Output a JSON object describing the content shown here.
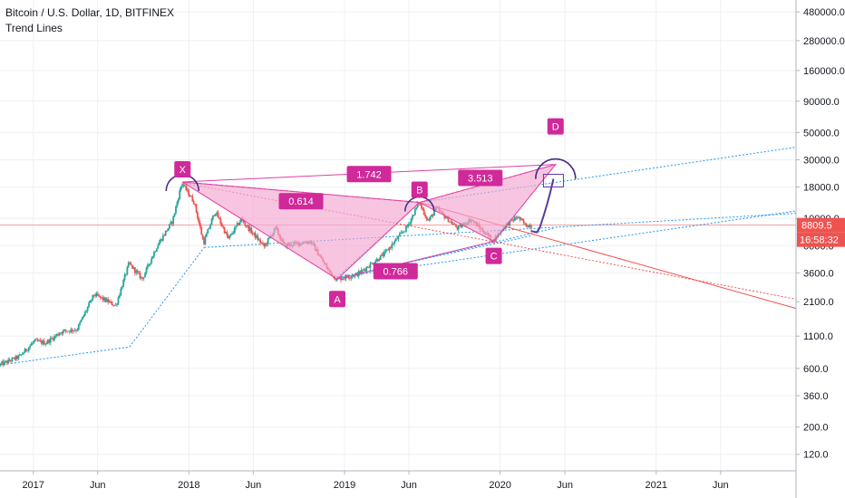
{
  "header": {
    "symbol": "Bitcoin / U.S. Dollar, 1D, BITFINEX",
    "study": "Trend Lines"
  },
  "price_badge": {
    "label": "8809.5",
    "color": "#ef5350"
  },
  "countdown_badge": {
    "label": "16:58:32",
    "color": "#ef5350"
  },
  "chart_data": {
    "type": "candlestick",
    "title": "Bitcoin / U.S. Dollar, 1D, BITFINEX",
    "y_scale": "log",
    "y_ticks": [
      120,
      200,
      360,
      600,
      1100,
      2100,
      3600,
      6000,
      10000,
      18000,
      30000,
      50000,
      90000,
      160000,
      280000,
      480000
    ],
    "y_tick_labels": [
      "120.0",
      "200.0",
      "360.0",
      "600.0",
      "1100.0",
      "2100.0",
      "3600.0",
      "6000.0",
      "10000.0",
      "18000.0",
      "30000.0",
      "50000.0",
      "90000.0",
      "160000.0",
      "280000.0",
      "480000.0"
    ],
    "x_ticks": [
      "2017-01-01",
      "2017-06-01",
      "2018-01-01",
      "2018-06-01",
      "2019-01-01",
      "2019-06-01",
      "2020-01-01",
      "2020-06-01",
      "2021-01-01",
      "2021-06-01"
    ],
    "x_tick_labels": [
      "2017",
      "Jun",
      "2018",
      "Jun",
      "2019",
      "Jun",
      "2020",
      "Jun",
      "2021",
      "Jun"
    ],
    "x_range": [
      "2016-10-15",
      "2021-11-25"
    ],
    "y_range": [
      88,
      600000
    ],
    "price_path": [
      [
        "2016-10-15",
        640
      ],
      [
        "2016-12-01",
        750
      ],
      [
        "2017-01-05",
        1000
      ],
      [
        "2017-02-01",
        970
      ],
      [
        "2017-03-10",
        1200
      ],
      [
        "2017-04-15",
        1250
      ],
      [
        "2017-05-25",
        2400
      ],
      [
        "2017-07-15",
        1950
      ],
      [
        "2017-08-15",
        4300
      ],
      [
        "2017-09-15",
        3200
      ],
      [
        "2017-10-20",
        6000
      ],
      [
        "2017-11-25",
        9500
      ],
      [
        "2017-12-17",
        19500
      ],
      [
        "2018-01-15",
        13500
      ],
      [
        "2018-02-06",
        6300
      ],
      [
        "2018-03-05",
        11500
      ],
      [
        "2018-04-05",
        6800
      ],
      [
        "2018-05-05",
        9800
      ],
      [
        "2018-06-28",
        5900
      ],
      [
        "2018-07-25",
        8300
      ],
      [
        "2018-08-14",
        6000
      ],
      [
        "2018-10-15",
        6500
      ],
      [
        "2018-11-25",
        3800
      ],
      [
        "2018-12-15",
        3200
      ],
      [
        "2019-02-01",
        3500
      ],
      [
        "2019-04-05",
        5100
      ],
      [
        "2019-05-30",
        8600
      ],
      [
        "2019-06-26",
        13500
      ],
      [
        "2019-07-18",
        9500
      ],
      [
        "2019-08-06",
        12000
      ],
      [
        "2019-09-25",
        8300
      ],
      [
        "2019-10-26",
        9800
      ],
      [
        "2019-12-17",
        6600
      ],
      [
        "2020-01-15",
        8800
      ],
      [
        "2020-02-12",
        10300
      ],
      [
        "2020-03-02",
        8800
      ],
      [
        "2020-03-13",
        8809.5
      ]
    ],
    "projection_path": [
      [
        "2020-03-13",
        7900
      ],
      [
        "2020-03-27",
        7700
      ],
      [
        "2020-04-03",
        8400
      ],
      [
        "2020-04-12",
        10500
      ],
      [
        "2020-04-20",
        13000
      ],
      [
        "2020-04-28",
        16500
      ],
      [
        "2020-05-05",
        21000
      ]
    ],
    "pattern": {
      "points": [
        {
          "label": "X",
          "date": "2017-12-17",
          "price": 19800
        },
        {
          "label": "A",
          "date": "2018-12-15",
          "price": 3200
        },
        {
          "label": "B",
          "date": "2019-06-26",
          "price": 13500
        },
        {
          "label": "C",
          "date": "2019-12-17",
          "price": 6500
        },
        {
          "label": "D",
          "date": "2020-05-10",
          "price": 27500
        }
      ],
      "ratios": [
        {
          "label": "0.614",
          "from": "X",
          "to": "B"
        },
        {
          "label": "0.766",
          "from": "A",
          "to": "C"
        },
        {
          "label": "1.742",
          "from": "X",
          "to": "D"
        },
        {
          "label": "3.513",
          "from": "B",
          "to": "D"
        }
      ]
    },
    "trend_lines": [
      {
        "style": "dashed",
        "color": "#2196f3",
        "from": [
          "2016-10-15",
          640
        ],
        "to": [
          "2017-08-15",
          900
        ]
      },
      {
        "style": "dashed",
        "color": "#2196f3",
        "from": [
          "2017-08-15",
          900
        ],
        "to": [
          "2018-02-06",
          5800
        ]
      },
      {
        "style": "dashed",
        "color": "#2196f3",
        "from": [
          "2018-02-06",
          5800
        ],
        "to": [
          "2021-11-25",
          11000
        ]
      },
      {
        "style": "dashed",
        "color": "#2196f3",
        "from": [
          "2018-12-15",
          3300
        ],
        "to": [
          "2021-11-25",
          11500
        ]
      },
      {
        "style": "dashed",
        "color": "#2196f3",
        "from": [
          "2018-12-15",
          3300
        ],
        "to": [
          "2019-06-26",
          13500
        ]
      },
      {
        "style": "dashed",
        "color": "#2196f3",
        "from": [
          "2019-06-26",
          13500
        ],
        "to": [
          "2021-11-25",
          38000
        ]
      },
      {
        "style": "dashed",
        "color": "#2196f3",
        "from": [
          "2018-12-15",
          3300
        ],
        "to": [
          "2020-03-13",
          7200
        ]
      },
      {
        "style": "dashed",
        "color": "#2196f3",
        "from": [
          "2019-02-01",
          3500
        ],
        "to": [
          "2020-05-05",
          8300
        ]
      },
      {
        "style": "solid",
        "color": "#ef5350",
        "from": [
          "2019-06-26",
          13500
        ],
        "to": [
          "2021-11-25",
          1850
        ]
      },
      {
        "style": "dashed",
        "color": "#ef5350",
        "from": [
          "2017-12-17",
          19500
        ],
        "to": [
          "2021-11-25",
          2200
        ]
      }
    ],
    "horizontal_lines": [
      {
        "price": 8809.5,
        "color": "#ef5350",
        "style": "solid"
      }
    ],
    "colors": {
      "up": "#26a69a",
      "down": "#ef5350",
      "pattern_fill": "#f5a6d0",
      "pattern_line": "#e040a0",
      "badge": "#d0299a",
      "arc": "#4a2b8a"
    }
  }
}
